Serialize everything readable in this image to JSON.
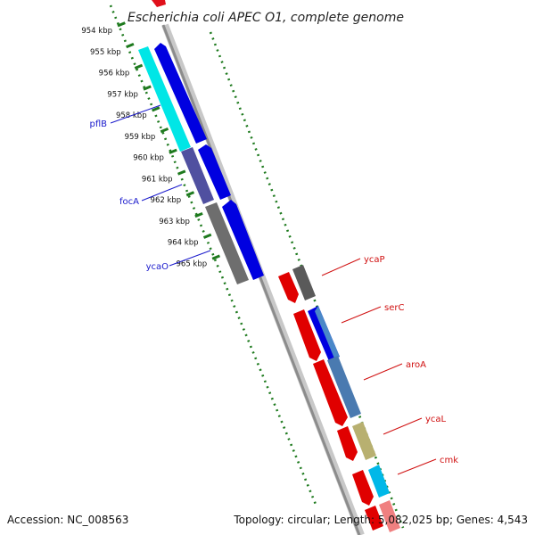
{
  "title": "Escherichia coli APEC O1, complete genome",
  "accession": "Accession: NC_008563",
  "summary": "Topology: circular; Length: 5,082,025 bp; Genes: 4,543",
  "colors": {
    "backbone": "#8c8c8c",
    "ruler": "#1e7a1e",
    "left_labels": "#1a1acc",
    "right_labels": "#d01010"
  },
  "ticks": [
    "954 kbp",
    "955 kbp",
    "956 kbp",
    "957 kbp",
    "958 kbp",
    "959 kbp",
    "960 kbp",
    "961 kbp",
    "962 kbp",
    "963 kbp",
    "964 kbp",
    "965 kbp"
  ],
  "genes_left": [
    "pflB",
    "focA",
    "ycaO"
  ],
  "genes_right": [
    "ycaP",
    "serC",
    "aroA",
    "ycaL",
    "cmk"
  ]
}
